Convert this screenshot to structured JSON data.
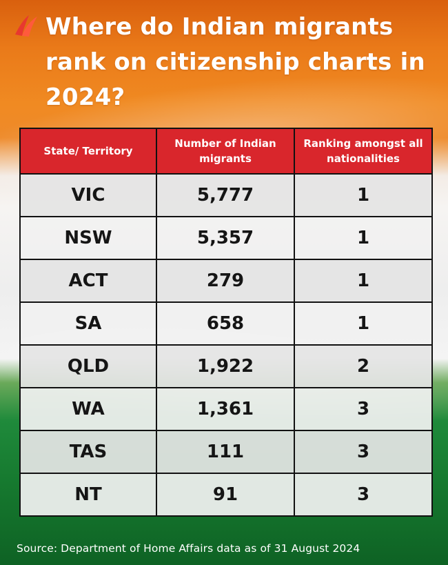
{
  "title": "Where do Indian migrants rank on citizenship charts in 2024?",
  "table": {
    "headers": [
      "State/ Territory",
      "Number of Indian migrants",
      "Ranking amongst all nationalities"
    ],
    "rows": [
      [
        "VIC",
        "5,777",
        "1"
      ],
      [
        "NSW",
        "5,357",
        "1"
      ],
      [
        "ACT",
        "279",
        "1"
      ],
      [
        "SA",
        "658",
        "1"
      ],
      [
        "QLD",
        "1,922",
        "2"
      ],
      [
        "WA",
        "1,361",
        "3"
      ],
      [
        "TAS",
        "111",
        "3"
      ],
      [
        "NT",
        "91",
        "3"
      ]
    ]
  },
  "source": "Source: Department of Home Affairs data as of 31 August 2024",
  "colors": {
    "header_red": "#d9262c",
    "saffron": "#f08a22",
    "green": "#16792f",
    "cell_grey": "#e4e4e4"
  },
  "icons": {
    "logo": "broadcaster-logo-icon"
  }
}
